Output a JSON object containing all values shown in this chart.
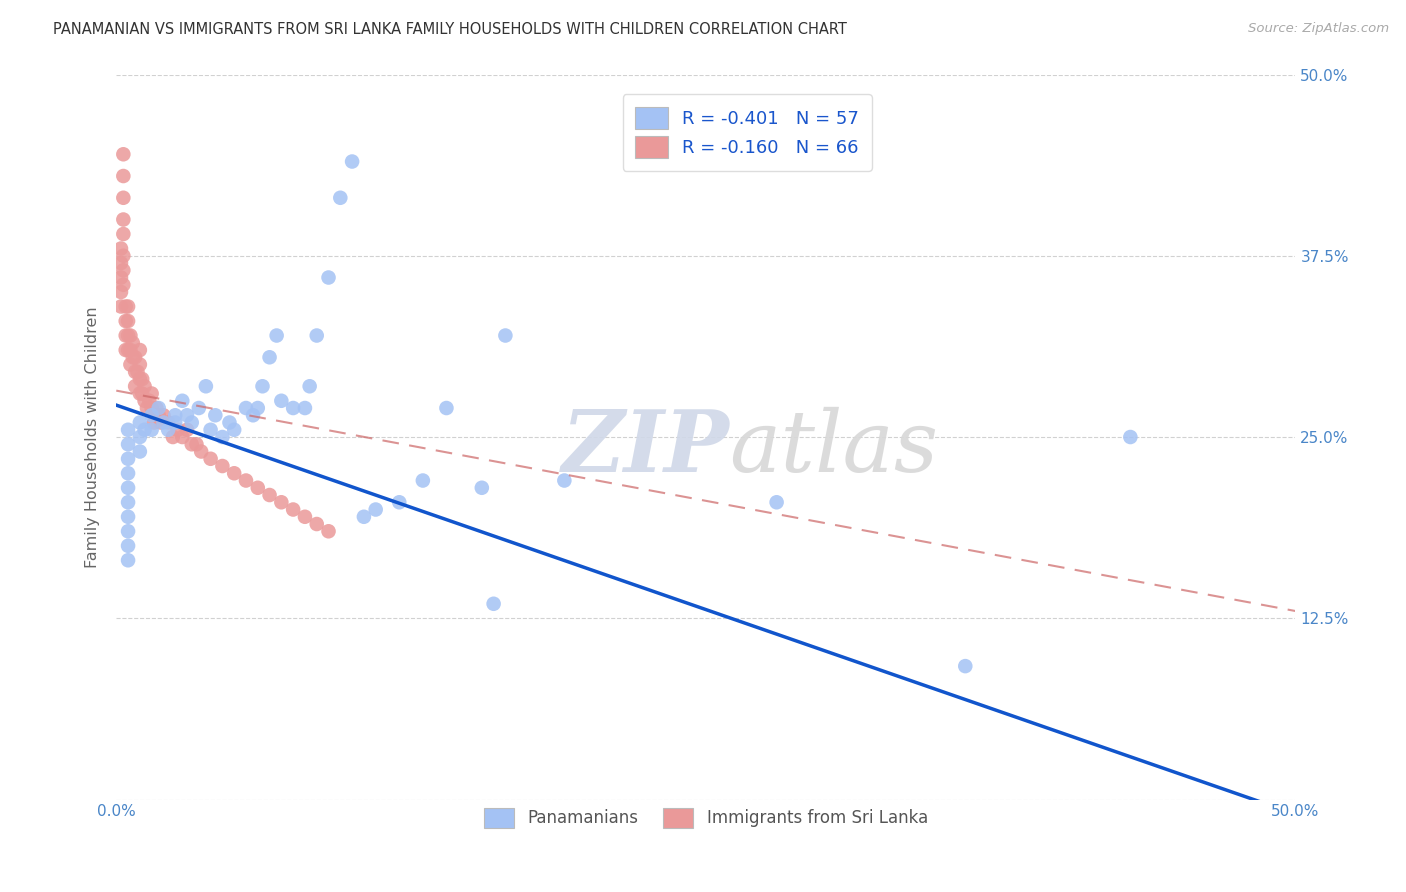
{
  "title": "PANAMANIAN VS IMMIGRANTS FROM SRI LANKA FAMILY HOUSEHOLDS WITH CHILDREN CORRELATION CHART",
  "source": "Source: ZipAtlas.com",
  "ylabel": "Family Households with Children",
  "xlim": [
    0,
    0.5
  ],
  "ylim": [
    0,
    0.5
  ],
  "blue_R": -0.401,
  "blue_N": 57,
  "pink_R": -0.16,
  "pink_N": 66,
  "blue_color": "#a4c2f4",
  "pink_color": "#ea9999",
  "blue_line_color": "#1155cc",
  "pink_line_color": "#cc6666",
  "watermark_zip": "ZIP",
  "watermark_atlas": "atlas",
  "legend_label_blue": "Panamanians",
  "legend_label_pink": "Immigrants from Sri Lanka",
  "blue_line_x0": 0.0,
  "blue_line_y0": 0.272,
  "blue_line_x1": 0.5,
  "blue_line_y1": -0.01,
  "pink_line_x0": 0.0,
  "pink_line_y0": 0.282,
  "pink_line_x1": 0.5,
  "pink_line_y1": 0.13,
  "blue_scatter_x": [
    0.005,
    0.005,
    0.005,
    0.005,
    0.005,
    0.005,
    0.005,
    0.005,
    0.005,
    0.005,
    0.01,
    0.01,
    0.01,
    0.012,
    0.015,
    0.015,
    0.018,
    0.02,
    0.022,
    0.025,
    0.025,
    0.028,
    0.03,
    0.032,
    0.035,
    0.038,
    0.04,
    0.042,
    0.045,
    0.048,
    0.05,
    0.055,
    0.058,
    0.06,
    0.062,
    0.065,
    0.068,
    0.07,
    0.075,
    0.08,
    0.082,
    0.085,
    0.09,
    0.095,
    0.1,
    0.105,
    0.11,
    0.12,
    0.13,
    0.14,
    0.155,
    0.16,
    0.165,
    0.19,
    0.28,
    0.36,
    0.43
  ],
  "blue_scatter_y": [
    0.255,
    0.245,
    0.235,
    0.225,
    0.215,
    0.205,
    0.195,
    0.185,
    0.175,
    0.165,
    0.26,
    0.25,
    0.24,
    0.255,
    0.265,
    0.255,
    0.27,
    0.26,
    0.255,
    0.265,
    0.26,
    0.275,
    0.265,
    0.26,
    0.27,
    0.285,
    0.255,
    0.265,
    0.25,
    0.26,
    0.255,
    0.27,
    0.265,
    0.27,
    0.285,
    0.305,
    0.32,
    0.275,
    0.27,
    0.27,
    0.285,
    0.32,
    0.36,
    0.415,
    0.44,
    0.195,
    0.2,
    0.205,
    0.22,
    0.27,
    0.215,
    0.135,
    0.32,
    0.22,
    0.205,
    0.092,
    0.25
  ],
  "pink_scatter_x": [
    0.002,
    0.002,
    0.002,
    0.002,
    0.002,
    0.003,
    0.003,
    0.003,
    0.003,
    0.003,
    0.003,
    0.003,
    0.003,
    0.004,
    0.004,
    0.004,
    0.004,
    0.005,
    0.005,
    0.005,
    0.005,
    0.006,
    0.006,
    0.006,
    0.007,
    0.007,
    0.008,
    0.008,
    0.008,
    0.009,
    0.01,
    0.01,
    0.01,
    0.01,
    0.011,
    0.011,
    0.012,
    0.012,
    0.013,
    0.014,
    0.015,
    0.015,
    0.016,
    0.017,
    0.018,
    0.019,
    0.02,
    0.022,
    0.024,
    0.026,
    0.028,
    0.03,
    0.032,
    0.034,
    0.036,
    0.04,
    0.045,
    0.05,
    0.055,
    0.06,
    0.065,
    0.07,
    0.075,
    0.08,
    0.085,
    0.09
  ],
  "pink_scatter_y": [
    0.38,
    0.37,
    0.36,
    0.35,
    0.34,
    0.445,
    0.43,
    0.415,
    0.4,
    0.39,
    0.375,
    0.365,
    0.355,
    0.34,
    0.33,
    0.32,
    0.31,
    0.34,
    0.33,
    0.32,
    0.31,
    0.32,
    0.31,
    0.3,
    0.315,
    0.305,
    0.305,
    0.295,
    0.285,
    0.295,
    0.31,
    0.3,
    0.29,
    0.28,
    0.29,
    0.28,
    0.285,
    0.275,
    0.27,
    0.275,
    0.28,
    0.27,
    0.26,
    0.27,
    0.265,
    0.26,
    0.265,
    0.26,
    0.25,
    0.255,
    0.25,
    0.255,
    0.245,
    0.245,
    0.24,
    0.235,
    0.23,
    0.225,
    0.22,
    0.215,
    0.21,
    0.205,
    0.2,
    0.195,
    0.19,
    0.185
  ]
}
